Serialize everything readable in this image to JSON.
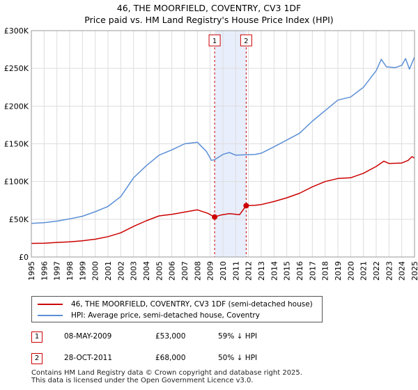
{
  "chart_data": {
    "type": "line",
    "title": "46, THE MOORFIELD, COVENTRY, CV3 1DF",
    "subtitle": "Price paid vs. HM Land Registry's House Price Index (HPI)",
    "xlim": [
      1995,
      2025
    ],
    "ylim": [
      0,
      300000
    ],
    "x_ticks": [
      "1995",
      "1996",
      "1997",
      "1998",
      "1999",
      "2000",
      "2001",
      "2002",
      "2003",
      "2004",
      "2005",
      "2006",
      "2007",
      "2008",
      "2009",
      "2010",
      "2011",
      "2012",
      "2013",
      "2014",
      "2015",
      "2016",
      "2017",
      "2018",
      "2019",
      "2020",
      "2021",
      "2022",
      "2023",
      "2024",
      "2025"
    ],
    "y_ticks": [
      {
        "value": 0,
        "label": "£0"
      },
      {
        "value": 50000,
        "label": "£50K"
      },
      {
        "value": 100000,
        "label": "£100K"
      },
      {
        "value": 150000,
        "label": "£150K"
      },
      {
        "value": 200000,
        "label": "£200K"
      },
      {
        "value": 250000,
        "label": "£250K"
      },
      {
        "value": 300000,
        "label": "£300K"
      }
    ],
    "grid": true,
    "shaded_region": {
      "from": 2009.35,
      "to": 2011.82
    },
    "series": [
      {
        "name": "46, THE MOORFIELD, COVENTRY, CV3 1DF (semi-detached house)",
        "color": "#cc0000",
        "points": [
          [
            1995.0,
            18000
          ],
          [
            1996.0,
            18200
          ],
          [
            1997.0,
            19300
          ],
          [
            1998.0,
            20000
          ],
          [
            1999.0,
            21500
          ],
          [
            2000.0,
            23500
          ],
          [
            2001.0,
            27000
          ],
          [
            2002.0,
            32000
          ],
          [
            2003.0,
            40500
          ],
          [
            2004.0,
            48000
          ],
          [
            2005.0,
            54500
          ],
          [
            2006.0,
            56500
          ],
          [
            2007.0,
            59500
          ],
          [
            2008.0,
            62500
          ],
          [
            2008.8,
            58000
          ],
          [
            2009.35,
            53000
          ],
          [
            2009.8,
            55500
          ],
          [
            2010.5,
            57500
          ],
          [
            2011.3,
            56000
          ],
          [
            2011.82,
            68000
          ],
          [
            2012.5,
            68500
          ],
          [
            2013.0,
            69500
          ],
          [
            2014.0,
            73500
          ],
          [
            2015.0,
            78500
          ],
          [
            2016.0,
            84500
          ],
          [
            2017.0,
            93000
          ],
          [
            2018.0,
            100000
          ],
          [
            2019.0,
            104000
          ],
          [
            2020.0,
            105000
          ],
          [
            2021.0,
            111000
          ],
          [
            2022.0,
            120000
          ],
          [
            2022.6,
            127000
          ],
          [
            2023.0,
            124000
          ],
          [
            2024.0,
            124500
          ],
          [
            2024.5,
            128000
          ],
          [
            2024.8,
            133000
          ],
          [
            2025.0,
            131000
          ]
        ]
      },
      {
        "name": "HPI: Average price, semi-detached house, Coventry",
        "color": "#5b8fd6",
        "points": [
          [
            1995.0,
            44500
          ],
          [
            1996.0,
            45500
          ],
          [
            1997.0,
            47500
          ],
          [
            1998.0,
            50500
          ],
          [
            1999.0,
            54000
          ],
          [
            2000.0,
            60000
          ],
          [
            2001.0,
            67000
          ],
          [
            2002.0,
            80000
          ],
          [
            2003.0,
            105000
          ],
          [
            2004.0,
            121000
          ],
          [
            2005.0,
            135000
          ],
          [
            2006.0,
            142000
          ],
          [
            2007.0,
            150000
          ],
          [
            2008.0,
            152000
          ],
          [
            2008.7,
            140000
          ],
          [
            2009.1,
            128000
          ],
          [
            2009.35,
            129000
          ],
          [
            2010.0,
            136000
          ],
          [
            2010.5,
            138500
          ],
          [
            2011.0,
            135000
          ],
          [
            2011.82,
            135500
          ],
          [
            2012.5,
            136000
          ],
          [
            2013.0,
            137500
          ],
          [
            2014.0,
            146000
          ],
          [
            2015.0,
            155000
          ],
          [
            2016.0,
            164000
          ],
          [
            2017.0,
            180000
          ],
          [
            2018.0,
            194000
          ],
          [
            2019.0,
            208000
          ],
          [
            2020.0,
            212000
          ],
          [
            2021.0,
            225000
          ],
          [
            2022.0,
            247000
          ],
          [
            2022.4,
            262000
          ],
          [
            2022.8,
            252000
          ],
          [
            2023.5,
            251000
          ],
          [
            2024.0,
            254000
          ],
          [
            2024.3,
            263000
          ],
          [
            2024.6,
            249000
          ],
          [
            2025.0,
            265000
          ]
        ]
      }
    ],
    "markers": [
      {
        "label": "1",
        "x": 2009.35,
        "y": 53000
      },
      {
        "label": "2",
        "x": 2011.82,
        "y": 68000
      }
    ]
  },
  "legend": {
    "items": [
      {
        "label": "46, THE MOORFIELD, COVENTRY, CV3 1DF (semi-detached house)",
        "color": "#cc0000"
      },
      {
        "label": "HPI: Average price, semi-detached house, Coventry",
        "color": "#5b8fd6"
      }
    ]
  },
  "transactions": [
    {
      "num": "1",
      "date": "08-MAY-2009",
      "price": "£53,000",
      "hpi": "59% ↓ HPI"
    },
    {
      "num": "2",
      "date": "28-OCT-2011",
      "price": "£68,000",
      "hpi": "50% ↓ HPI"
    }
  ],
  "footer": {
    "line1": "Contains HM Land Registry data © Crown copyright and database right 2025.",
    "line2": "This data is licensed under the Open Government Licence v3.0."
  }
}
